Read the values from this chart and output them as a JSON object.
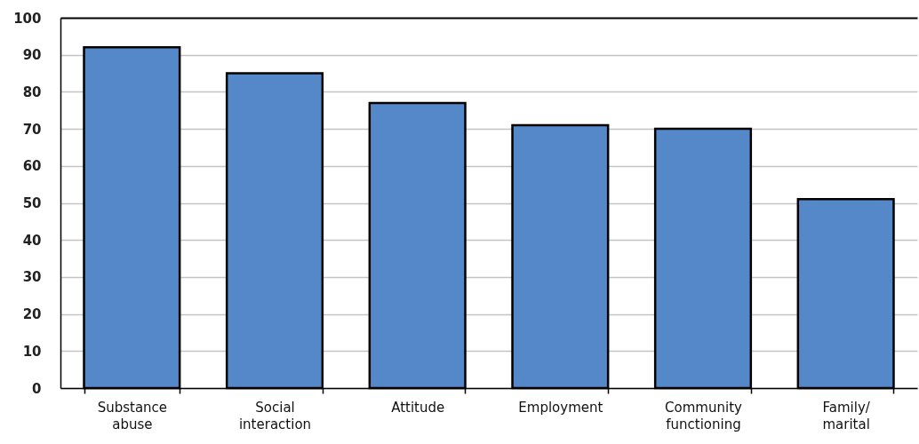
{
  "chart_data": {
    "type": "bar",
    "categories": [
      "Substance abuse",
      "Social interaction",
      "Attitude",
      "Employment",
      "Community functioning",
      "Family/marital"
    ],
    "values": [
      92,
      85,
      77,
      71,
      70,
      51
    ],
    "color": "#5588c8",
    "ylim": [
      0,
      100
    ],
    "yticks": [
      0,
      10,
      20,
      30,
      40,
      50,
      60,
      70,
      80,
      90,
      100
    ],
    "grid": "y"
  }
}
